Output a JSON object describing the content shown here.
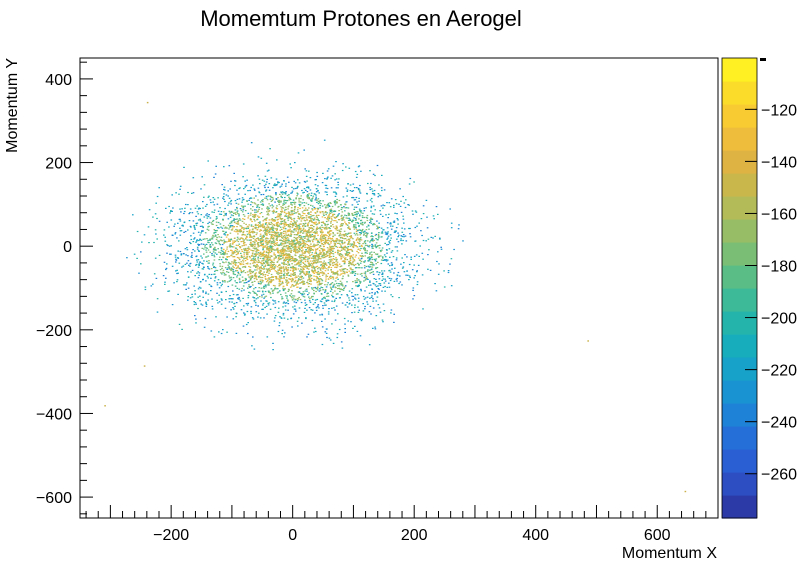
{
  "chart_data": {
    "type": "heatmap",
    "title": "Momemtum Protones en Aerogel",
    "xlabel": "Momentum X",
    "ylabel": "Momentum Y",
    "xlim": [
      -350,
      700
    ],
    "ylim": [
      -650,
      450
    ],
    "x_ticks": [
      -200,
      0,
      200,
      400,
      600
    ],
    "x_tick_labels": [
      "−200",
      "0",
      "200",
      "400",
      "600"
    ],
    "y_ticks": [
      -600,
      -400,
      -200,
      0,
      200,
      400
    ],
    "y_tick_labels": [
      "−600",
      "−400",
      "−200",
      "0",
      "200",
      "400"
    ],
    "colorbar": {
      "range": [
        -277,
        -110
      ],
      "ticks": [
        -260,
        -240,
        -220,
        -200,
        -180,
        -160,
        -140,
        -120
      ],
      "tick_labels": [
        "−260",
        "−240",
        "−220",
        "−200",
        "−180",
        "−160",
        "−140",
        "−120"
      ],
      "colors": [
        "#2b3aa6",
        "#2d4ec3",
        "#2a5fd3",
        "#2470d8",
        "#1e82d6",
        "#1a93d2",
        "#16a2c9",
        "#18adbd",
        "#25b4ab",
        "#3dba98",
        "#5abd86",
        "#79be74",
        "#97bd66",
        "#b2bb58",
        "#cab74c",
        "#dfb343",
        "#efbd3c",
        "#f8cb33",
        "#fcdc2a",
        "#fef022"
      ]
    },
    "distribution": {
      "shape": "elliptical cluster",
      "center": [
        0,
        0
      ],
      "core_color": "#cbb548",
      "halo_color": "#1a93d2",
      "outliers": [
        [
          -240,
          345
        ],
        [
          -310,
          -380
        ],
        [
          -245,
          -285
        ],
        [
          485,
          -225
        ],
        [
          645,
          -585
        ]
      ]
    }
  }
}
